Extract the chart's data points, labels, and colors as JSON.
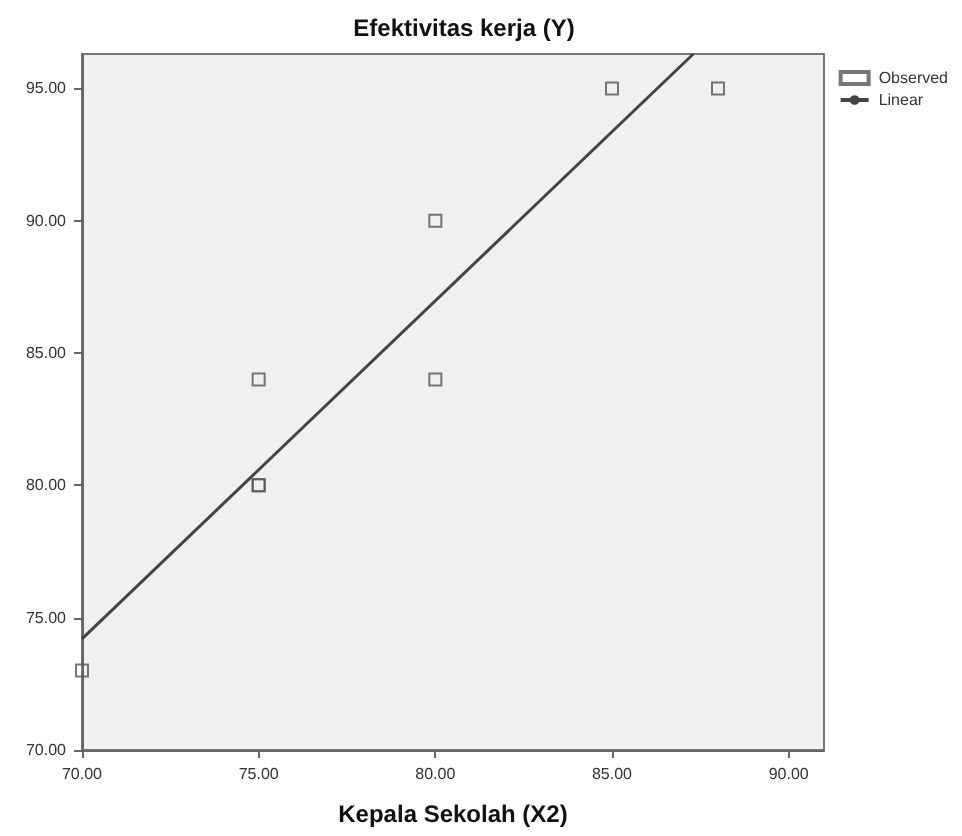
{
  "chart_data": {
    "type": "scatter",
    "title": "Efektivitas kerja (Y)",
    "xlabel": "Kepala Sekolah (X2)",
    "x": [
      70,
      75,
      75,
      75,
      80,
      80,
      85,
      88
    ],
    "series": [
      {
        "name": "Observed",
        "color": "#555555",
        "marker": "square",
        "values": [
          73,
          80,
          80,
          84,
          84,
          90,
          95,
          95
        ]
      },
      {
        "name": "Linear",
        "type": "line",
        "color": "#444444",
        "marker": "none",
        "line_style": "solid",
        "x": [
          70,
          87.3
        ],
        "values": [
          74.2,
          96.3
        ]
      }
    ],
    "xlim": [
      70,
      91
    ],
    "ylim": [
      70,
      96.3
    ],
    "xticks": [
      {
        "value": 70,
        "label": "70.00"
      },
      {
        "value": 75,
        "label": "75.00"
      },
      {
        "value": 80,
        "label": "80.00"
      },
      {
        "value": 85,
        "label": "85.00"
      },
      {
        "value": 90,
        "label": "90.00"
      }
    ],
    "yticks": [
      {
        "value": 70,
        "label": "70.00"
      },
      {
        "value": 75,
        "label": "75.00"
      },
      {
        "value": 80,
        "label": "80.00"
      },
      {
        "value": 85,
        "label": "85.00"
      },
      {
        "value": 90,
        "label": "90.00"
      },
      {
        "value": 95,
        "label": "95.00"
      }
    ],
    "grid": false,
    "legend": "top right"
  }
}
